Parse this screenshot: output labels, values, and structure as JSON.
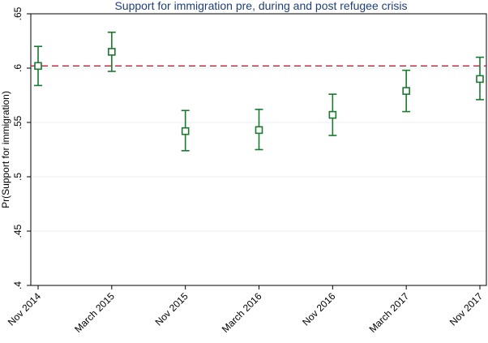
{
  "chart_data": {
    "type": "scatter",
    "title": "Support for immigration pre, during and post refugee crisis",
    "xlabel": "",
    "ylabel": "Pr(Support for immigration)",
    "categories": [
      "Nov 2014",
      "March 2015",
      "Nov 2015",
      "March 2016",
      "Nov 2016",
      "March 2017",
      "Nov 2017"
    ],
    "series": [
      {
        "name": "Pr(Support for immigration)",
        "values": [
          0.602,
          0.615,
          0.542,
          0.543,
          0.557,
          0.579,
          0.59
        ],
        "ci_low": [
          0.584,
          0.597,
          0.524,
          0.525,
          0.538,
          0.56,
          0.571
        ],
        "ci_high": [
          0.62,
          0.633,
          0.561,
          0.562,
          0.576,
          0.598,
          0.61
        ]
      }
    ],
    "reference_line": {
      "value": 0.602,
      "style": "dashed"
    },
    "ylim": [
      0.4,
      0.65
    ],
    "yticks": [
      0.4,
      0.45,
      0.5,
      0.55,
      0.6,
      0.65
    ],
    "ytick_labels": [
      ".4",
      ".45",
      ".5",
      ".55",
      ".6",
      ".65"
    ],
    "grid": true,
    "colors": {
      "series": "#1a7a2e",
      "reference": "#b22234",
      "title": "#1f3f7a",
      "axis": "#000000",
      "grid": "#e8eef3"
    }
  }
}
